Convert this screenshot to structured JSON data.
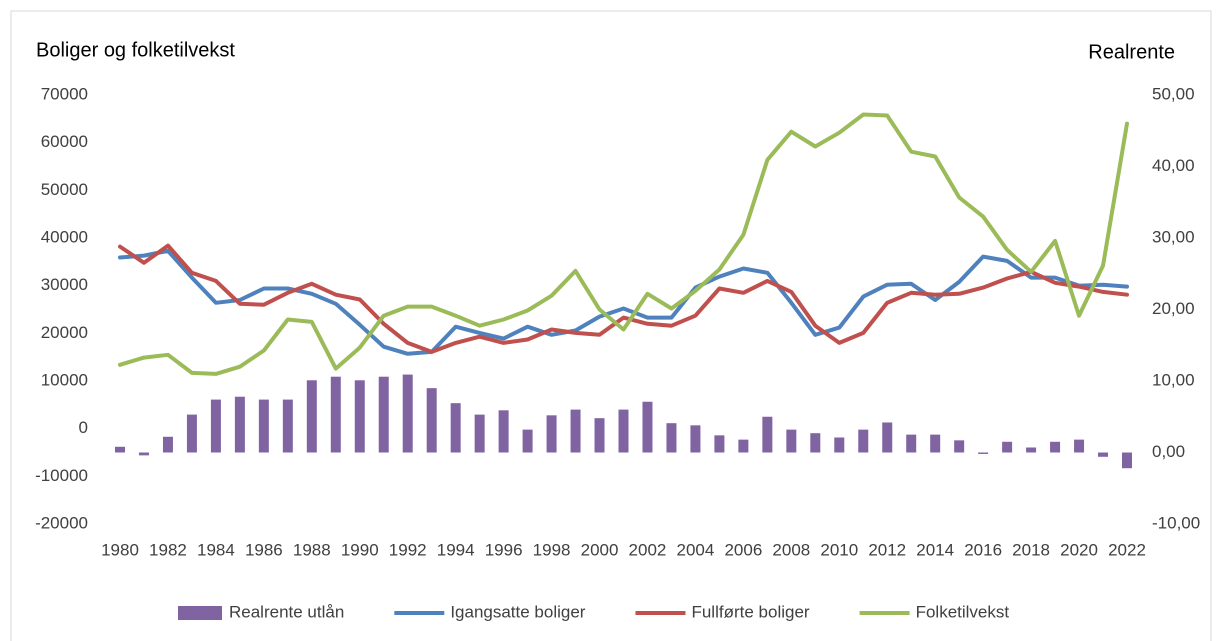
{
  "chart_data": {
    "type": "combo",
    "y_title": "Boliger og folketilvekst",
    "y2_title": "Realrente",
    "categories": [
      "1980",
      null,
      "1982",
      null,
      "1984",
      null,
      "1986",
      null,
      "1988",
      null,
      "1990",
      null,
      "1992",
      null,
      "1994",
      null,
      "1996",
      null,
      "1998",
      null,
      "2000",
      null,
      "2002",
      null,
      "2004",
      null,
      "2006",
      null,
      "2008",
      null,
      "2010",
      null,
      "2012",
      null,
      "2014",
      null,
      "2016",
      null,
      "2018",
      null,
      "2020",
      null,
      "2022"
    ],
    "ylim": [
      -20000,
      70000
    ],
    "yticks": [
      -20000,
      -10000,
      0,
      10000,
      20000,
      30000,
      40000,
      50000,
      60000,
      70000
    ],
    "y2lim": [
      -10,
      50
    ],
    "y2ticks": [
      {
        "value": -10,
        "label": "-10,00"
      },
      {
        "value": 0,
        "label": "0,00"
      },
      {
        "value": 10,
        "label": "10,00"
      },
      {
        "value": 20,
        "label": "20,00"
      },
      {
        "value": 30,
        "label": "30,00"
      },
      {
        "value": 40,
        "label": "40,00"
      },
      {
        "value": 50,
        "label": "50,00"
      }
    ],
    "legend": "bottom",
    "series": [
      {
        "name": "Realrente utlån",
        "type": "bar",
        "axis": "y2",
        "color": "#8064a2",
        "values": [
          0.8,
          -0.4,
          2.2,
          5.3,
          7.4,
          7.8,
          7.4,
          7.4,
          10.1,
          10.6,
          10.1,
          10.6,
          10.9,
          9.0,
          6.9,
          5.3,
          5.9,
          3.2,
          5.2,
          6.0,
          4.8,
          6.0,
          7.1,
          4.1,
          3.8,
          2.4,
          1.8,
          5.0,
          3.2,
          2.7,
          2.1,
          3.2,
          4.2,
          2.5,
          2.5,
          1.7,
          -0.2,
          1.5,
          0.7,
          1.5,
          1.8,
          -0.6,
          -2.2
        ]
      },
      {
        "name": "Igangsatte boliger",
        "type": "line",
        "color": "#4f81bd",
        "values": [
          35900,
          36300,
          37300,
          31700,
          26400,
          27000,
          29400,
          29400,
          28300,
          26200,
          21800,
          17200,
          15700,
          16100,
          21400,
          20100,
          18900,
          21400,
          19700,
          20600,
          23500,
          25200,
          23300,
          23300,
          29600,
          31900,
          33600,
          32700,
          26400,
          19700,
          21200,
          27700,
          30200,
          30400,
          27000,
          30800,
          36100,
          35200,
          31700,
          31700,
          30000,
          30200,
          29800
        ]
      },
      {
        "name": "Fullførte boliger",
        "type": "line",
        "color": "#c0504d",
        "values": [
          38200,
          34800,
          38400,
          32700,
          31000,
          26200,
          26000,
          28500,
          30400,
          28100,
          27100,
          22000,
          18000,
          16100,
          18000,
          19300,
          18000,
          18700,
          20800,
          20100,
          19700,
          23300,
          22000,
          21600,
          23700,
          29400,
          28500,
          31000,
          28700,
          21600,
          18000,
          20100,
          26400,
          28500,
          28100,
          28300,
          29600,
          31500,
          32900,
          30600,
          29800,
          28700,
          28100
        ]
      },
      {
        "name": "Folketilvekst",
        "type": "line",
        "color": "#9bbb59",
        "values": [
          13400,
          14900,
          15500,
          11700,
          11500,
          13000,
          16400,
          22900,
          22400,
          12600,
          17000,
          23700,
          25600,
          25600,
          23700,
          21600,
          22900,
          24800,
          27900,
          33100,
          25000,
          20800,
          28300,
          25200,
          28900,
          33400,
          40700,
          56400,
          62300,
          59200,
          62100,
          65900,
          65700,
          58100,
          57100,
          48500,
          44500,
          37500,
          32900,
          39400,
          23700,
          34200,
          64000
        ]
      }
    ]
  }
}
